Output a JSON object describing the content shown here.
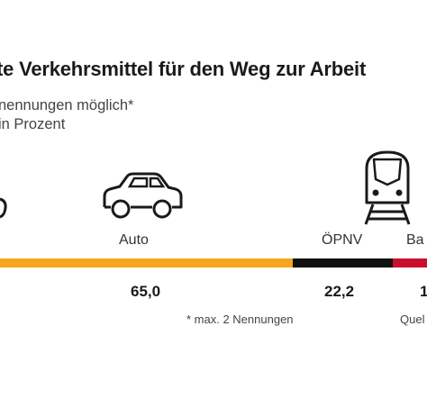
{
  "header": {
    "title": "te Verkehrsmittel für den Weg zur Arbeit",
    "subtitle_1": "nennungen möglich*",
    "subtitle_2": "in Prozent"
  },
  "chart_data": {
    "type": "bar",
    "orientation": "horizontal-stacked",
    "categories": [
      "Auto",
      "ÖPNV",
      "Ba"
    ],
    "values": [
      65.0,
      22.2,
      null
    ],
    "value_labels": [
      "65,0",
      "22,2",
      "1"
    ],
    "colors": [
      "#f4a61c",
      "#111111",
      "#c8102e"
    ]
  },
  "footer": {
    "footnote": "* max. 2 Nennungen",
    "source": "Quel"
  },
  "icons": [
    "car-icon",
    "train-icon"
  ]
}
